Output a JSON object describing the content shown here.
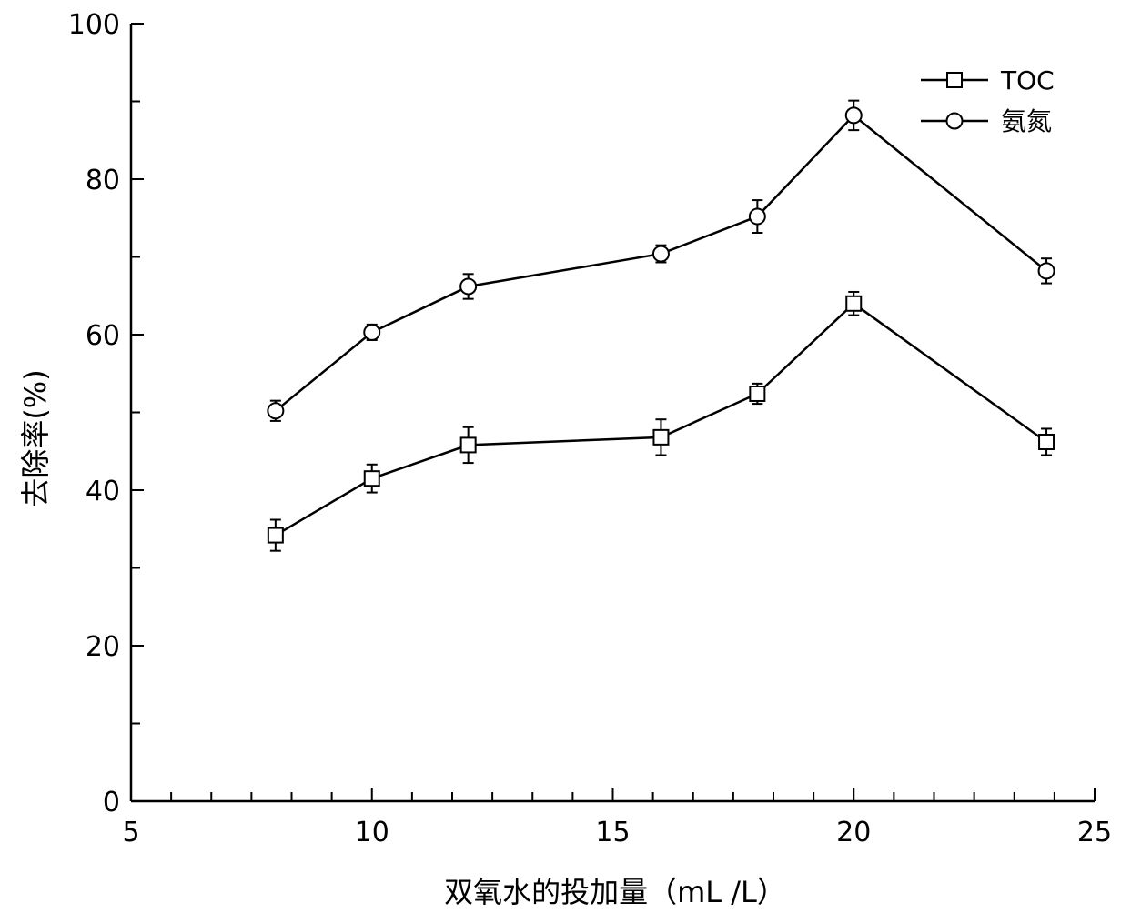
{
  "chart_data": {
    "type": "line",
    "xlabel": "双氧水的投加量（mL /L）",
    "ylabel": "去除率(%)",
    "xlim": [
      5,
      25
    ],
    "ylim": [
      0,
      100
    ],
    "x_major_ticks": [
      5,
      10,
      15,
      20,
      25
    ],
    "x_minor_step": 0.833,
    "y_major_ticks": [
      0,
      20,
      40,
      60,
      80,
      100
    ],
    "y_minor_step": 10,
    "grid": false,
    "legend_position": "top-right",
    "series": [
      {
        "name": "TOC",
        "marker": "square",
        "x": [
          8,
          10,
          12,
          16,
          18,
          20,
          24
        ],
        "y": [
          34.2,
          41.5,
          45.8,
          46.8,
          52.4,
          64.0,
          46.2
        ],
        "err": [
          2.0,
          1.8,
          2.3,
          2.3,
          1.3,
          1.5,
          1.7
        ]
      },
      {
        "name": "氨氮",
        "marker": "circle",
        "x": [
          8,
          10,
          12,
          16,
          18,
          20,
          24
        ],
        "y": [
          50.2,
          60.3,
          66.2,
          70.4,
          75.2,
          88.2,
          68.2
        ],
        "err": [
          1.3,
          1.0,
          1.6,
          1.1,
          2.1,
          1.9,
          1.6
        ]
      }
    ]
  }
}
